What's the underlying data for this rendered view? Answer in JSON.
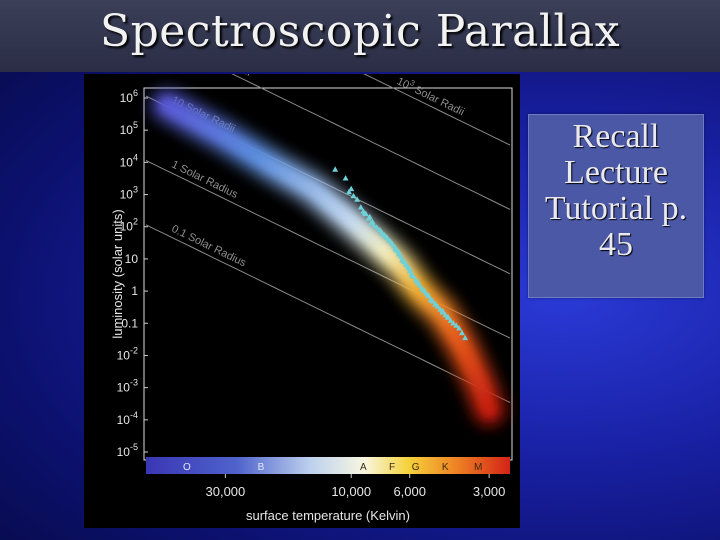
{
  "slide": {
    "title": "Spectroscopic Parallax",
    "note_lines": [
      "Recall",
      "Lecture",
      "Tutorial p.",
      "45"
    ]
  },
  "chart_data": {
    "type": "scatter",
    "title": "",
    "xlabel": "surface temperature (Kelvin)",
    "ylabel": "luminosity (solar units)",
    "x_scale": "log",
    "x_reversed": true,
    "y_scale": "log",
    "xlim": [
      60000,
      2500
    ],
    "ylim": [
      1e-05,
      1000000
    ],
    "x_ticks": [
      {
        "label": "30,000",
        "value": 30000
      },
      {
        "label": "10,000",
        "value": 10000
      },
      {
        "label": "6,000",
        "value": 6000
      },
      {
        "label": "3,000",
        "value": 3000
      }
    ],
    "y_ticks": [
      {
        "base": "10",
        "exp": "6",
        "value": 1000000
      },
      {
        "base": "10",
        "exp": "5",
        "value": 100000
      },
      {
        "base": "10",
        "exp": "4",
        "value": 10000
      },
      {
        "base": "10",
        "exp": "3",
        "value": 1000
      },
      {
        "base": "10",
        "exp": "2",
        "value": 100
      },
      {
        "base": "10",
        "exp": "",
        "value": 10
      },
      {
        "base": "1",
        "exp": "",
        "value": 1
      },
      {
        "base": "0.1",
        "exp": "",
        "value": 0.1
      },
      {
        "base": "10",
        "exp": "-2",
        "value": 0.01
      },
      {
        "base": "10",
        "exp": "-3",
        "value": 0.001
      },
      {
        "base": "10",
        "exp": "-4",
        "value": 0.0001
      },
      {
        "base": "10",
        "exp": "-5",
        "value": 1e-05
      }
    ],
    "spectral_classes": [
      "O",
      "B",
      "A",
      "F",
      "G",
      "K",
      "M"
    ],
    "radius_lines": [
      {
        "prefix": "10",
        "exp": "3",
        "suffix": "Solar Radii",
        "radius": 1000
      },
      {
        "prefix": "10",
        "exp": "2",
        "suffix": "Solar Radii",
        "radius": 100
      },
      {
        "prefix": "10 Solar Radii",
        "exp": "",
        "suffix": "",
        "radius": 10
      },
      {
        "prefix": "1 Solar Radius",
        "exp": "",
        "suffix": "",
        "radius": 1
      },
      {
        "prefix": "0.1 Solar Radius",
        "exp": "",
        "suffix": "",
        "radius": 0.1
      }
    ],
    "star_points": [
      [
        10500,
        3200
      ],
      [
        10000,
        1500
      ],
      [
        9800,
        900
      ],
      [
        9200,
        400
      ],
      [
        9000,
        300
      ],
      [
        8800,
        250
      ],
      [
        8600,
        180
      ],
      [
        8400,
        130
      ],
      [
        8200,
        110
      ],
      [
        8000,
        95
      ],
      [
        7800,
        80
      ],
      [
        7600,
        60
      ],
      [
        7500,
        55
      ],
      [
        7300,
        45
      ],
      [
        7200,
        38
      ],
      [
        7000,
        30
      ],
      [
        6900,
        25
      ],
      [
        6800,
        22
      ],
      [
        6700,
        18
      ],
      [
        6600,
        14
      ],
      [
        6500,
        12
      ],
      [
        6400,
        9
      ],
      [
        6300,
        8
      ],
      [
        6200,
        6.5
      ],
      [
        6100,
        5.5
      ],
      [
        6000,
        4.2
      ],
      [
        5900,
        3.5
      ],
      [
        5800,
        2.8
      ],
      [
        5700,
        2.2
      ],
      [
        5600,
        1.8
      ],
      [
        5500,
        1.5
      ],
      [
        5400,
        1.2
      ],
      [
        5300,
        1.0
      ],
      [
        5200,
        0.85
      ],
      [
        5100,
        0.7
      ],
      [
        5000,
        0.55
      ],
      [
        4900,
        0.48
      ],
      [
        4800,
        0.4
      ],
      [
        4700,
        0.33
      ],
      [
        4600,
        0.27
      ],
      [
        4500,
        0.22
      ],
      [
        4400,
        0.18
      ],
      [
        4300,
        0.15
      ],
      [
        4200,
        0.12
      ],
      [
        4100,
        0.1
      ],
      [
        4000,
        0.085
      ],
      [
        3900,
        0.07
      ],
      [
        3800,
        0.05
      ],
      [
        3700,
        0.035
      ],
      [
        9500,
        700
      ],
      [
        8500,
        200
      ],
      [
        7700,
        70
      ],
      [
        6800,
        20
      ],
      [
        6200,
        7
      ],
      [
        5900,
        3
      ],
      [
        5300,
        1.1
      ],
      [
        4800,
        0.38
      ],
      [
        4300,
        0.16
      ],
      [
        7100,
        35
      ],
      [
        6600,
        16
      ],
      [
        6000,
        5
      ],
      [
        5100,
        0.75
      ],
      [
        4500,
        0.24
      ],
      [
        8300,
        140
      ],
      [
        8900,
        260
      ],
      [
        7400,
        50
      ],
      [
        6400,
        10
      ],
      [
        5600,
        2
      ],
      [
        4950,
        0.5
      ],
      [
        11500,
        6000
      ],
      [
        10200,
        1200
      ]
    ]
  }
}
